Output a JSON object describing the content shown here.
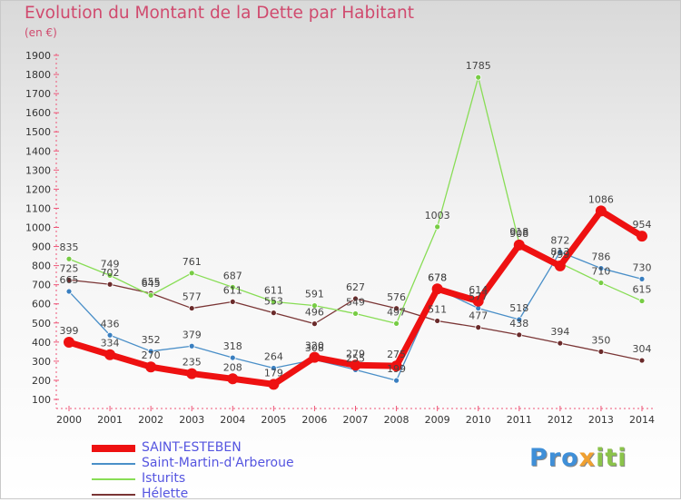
{
  "title": "Evolution du Montant de la Dette par Habitant",
  "subtitle": "(en €)",
  "logo": {
    "part1": "Pro",
    "part2": "x",
    "part3": "iti"
  },
  "chart_data": {
    "type": "line",
    "x": [
      "2000",
      "2001",
      "2002",
      "2003",
      "2004",
      "2005",
      "2006",
      "2007",
      "2008",
      "2009",
      "2010",
      "2011",
      "2012",
      "2013",
      "2014"
    ],
    "y_ticks": [
      100,
      200,
      300,
      400,
      500,
      600,
      700,
      800,
      900,
      1000,
      1100,
      1200,
      1300,
      1400,
      1500,
      1600,
      1700,
      1800,
      1900
    ],
    "ylim": [
      100,
      1900
    ],
    "grid": false,
    "legend": "bottom-left",
    "series": [
      {
        "name": "SAINT-ESTEBEN",
        "color": "#ee1111",
        "values": [
          399,
          334,
          270,
          235,
          208,
          179,
          320,
          279,
          275,
          678,
          614,
          908,
          799,
          1086,
          954
        ],
        "labels": [
          "399",
          "334",
          "270",
          "235",
          "208",
          "179",
          "320",
          "279",
          "275",
          "678",
          "614",
          "908",
          "799",
          "1086",
          "954"
        ]
      },
      {
        "name": "Saint-Martin-d'Arberoue",
        "color": "#4a8fc8",
        "values": [
          665,
          436,
          352,
          379,
          318,
          264,
          308,
          255,
          199,
          678,
          577,
          518,
          872,
          786,
          730
        ],
        "labels": [
          "665",
          "436",
          "352",
          "379",
          "318",
          "264",
          "308",
          "255",
          "199",
          "678",
          "577",
          "518",
          "872",
          "786",
          "730"
        ]
      },
      {
        "name": "Isturits",
        "color": "#88dd55",
        "values": [
          835,
          749,
          645,
          761,
          687,
          611,
          591,
          549,
          497,
          1003,
          1785,
          918,
          813,
          710,
          615
        ],
        "labels": [
          "835",
          "749",
          "645",
          "761",
          "687",
          "611",
          "591",
          "549",
          "497",
          "1003",
          "1785",
          "918",
          "813",
          "710",
          "615"
        ]
      },
      {
        "name": "Hélette",
        "color": "#7a3535",
        "values": [
          725,
          702,
          655,
          577,
          611,
          553,
          496,
          627,
          576,
          511,
          477,
          438,
          394,
          350,
          304
        ],
        "labels": [
          "725",
          "702",
          "655",
          "577",
          "611",
          "553",
          "496",
          "627",
          "576",
          "511",
          "477",
          "438",
          "394",
          "350",
          "304"
        ]
      }
    ]
  }
}
